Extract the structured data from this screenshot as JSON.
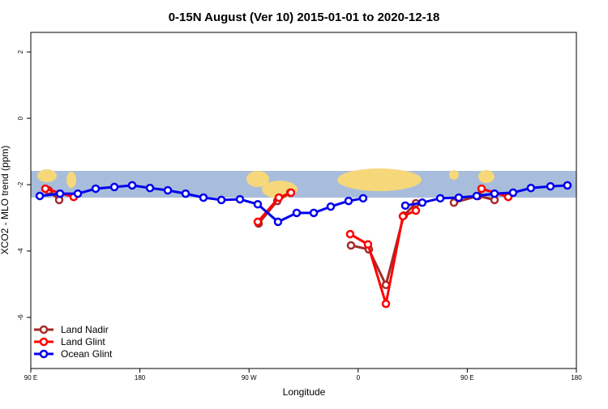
{
  "chart_data": {
    "type": "line",
    "title": "0-15N August (Ver 10)   2015-01-01 to 2020-12-18",
    "xlabel": "Longitude",
    "ylabel": "XCO2 - MLO trend (ppm)",
    "xlim": [
      90,
      540
    ],
    "ylim": [
      -7.54,
      2.59
    ],
    "xticks": [
      {
        "value": 90,
        "label": "90 E"
      },
      {
        "value": 180,
        "label": "180"
      },
      {
        "value": 270,
        "label": "90 W"
      },
      {
        "value": 360,
        "label": "0"
      },
      {
        "value": 450,
        "label": "90 E"
      },
      {
        "value": 540,
        "label": "180"
      }
    ],
    "yticks": [
      2,
      0,
      -2,
      -4,
      -6
    ],
    "legend": "bottom-left",
    "series": [
      {
        "name": "Land Nadir",
        "color": "#a52a2a",
        "x": [
          104.7,
          113.4,
          null,
          277.9,
          293.3,
          304,
          null,
          354.1,
          368.8,
          382.9,
          397.6,
          407.6,
          null,
          439,
          459.1,
          472.5
        ],
        "values": [
          -2.17,
          -2.46,
          null,
          -3.17,
          -2.49,
          -2.24,
          null,
          -3.83,
          -3.95,
          -5.02,
          -2.93,
          -2.56,
          null,
          -2.54,
          -2.34,
          -2.46
        ]
      },
      {
        "name": "Land Glint",
        "color": "#ff0000",
        "x": [
          102,
          125.4,
          null,
          277.2,
          294.6,
          304.6,
          null,
          353.4,
          368.1,
          382.9,
          396.9,
          407.6,
          null,
          461.8,
          483.8
        ],
        "values": [
          -2.12,
          -2.37,
          null,
          -3.12,
          -2.39,
          -2.24,
          null,
          -3.49,
          -3.8,
          -5.59,
          -2.95,
          -2.78,
          null,
          -2.12,
          -2.37
        ]
      },
      {
        "name": "Ocean Glint",
        "color": "#0000ee",
        "x": [
          97.4,
          114.1,
          128.8,
          143.5,
          158.9,
          173.6,
          188.3,
          203,
          217.7,
          232.4,
          247.2,
          262.5,
          277.2,
          293.9,
          309.3,
          323.4,
          337.4,
          352.1,
          364.1,
          null,
          398.9,
          412.9,
          427.7,
          443,
          457.8,
          472.5,
          487.8,
          502.5,
          518.6,
          532.6
        ],
        "values": [
          -2.34,
          -2.27,
          -2.27,
          -2.12,
          -2.07,
          -2.02,
          -2.1,
          -2.17,
          -2.27,
          -2.39,
          -2.46,
          -2.44,
          -2.59,
          -3.12,
          -2.85,
          -2.85,
          -2.66,
          -2.49,
          -2.41,
          null,
          -2.63,
          -2.54,
          -2.41,
          -2.39,
          -2.34,
          -2.27,
          -2.24,
          -2.1,
          -2.05,
          -2.02
        ]
      }
    ]
  }
}
